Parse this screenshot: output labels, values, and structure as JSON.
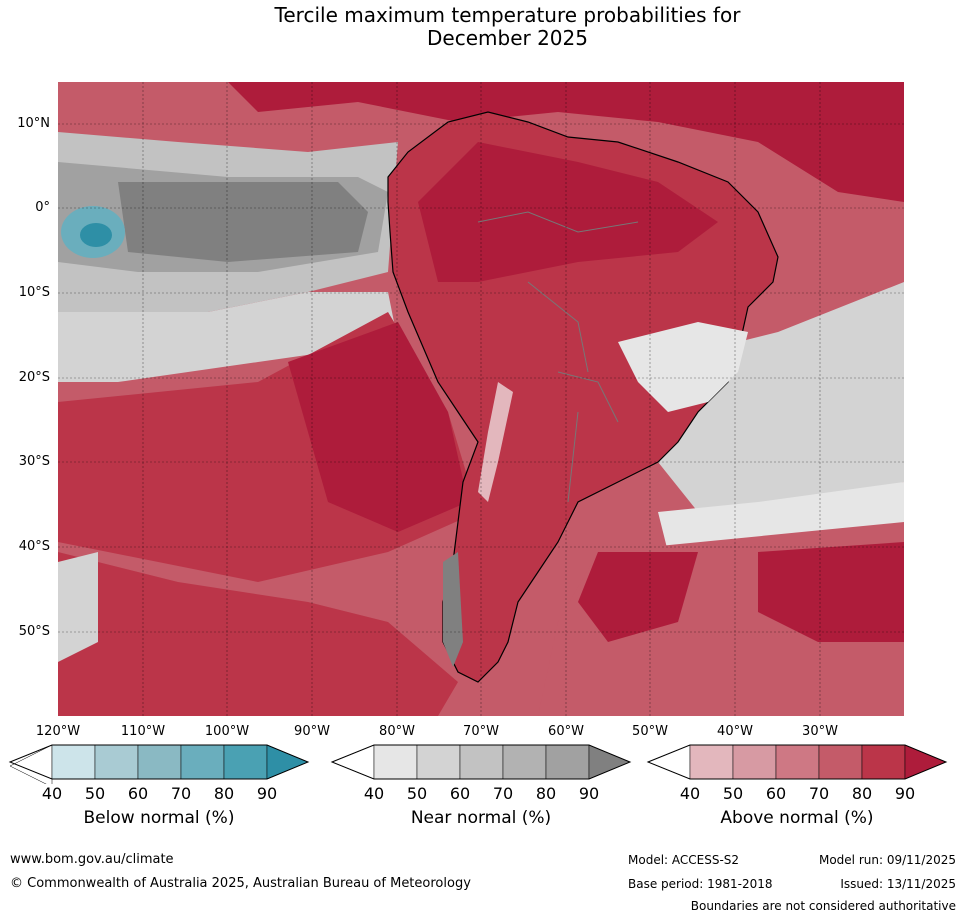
{
  "title_line1": "Tercile maximum temperature probabilities for",
  "title_line2": "December 2025",
  "map": {
    "lat_labels": [
      "10°N",
      "0°",
      "10°S",
      "20°S",
      "30°S",
      "40°S",
      "50°S"
    ],
    "lon_labels": [
      "120°W",
      "110°W",
      "100°W",
      "90°W",
      "80°W",
      "70°W",
      "60°W",
      "50°W",
      "40°W",
      "30°W"
    ]
  },
  "legends": [
    {
      "title": "Below normal (%)",
      "ticks": [
        "40",
        "50",
        "60",
        "70",
        "80",
        "90"
      ],
      "colors": [
        "#ffffff",
        "#cde4ea",
        "#a9cbd3",
        "#8ab9c3",
        "#6aaebd",
        "#4aa1b3",
        "#2e8fa6"
      ]
    },
    {
      "title": "Near normal (%)",
      "ticks": [
        "40",
        "50",
        "60",
        "70",
        "80",
        "90"
      ],
      "colors": [
        "#ffffff",
        "#e6e6e6",
        "#d3d3d3",
        "#c2c2c2",
        "#b2b2b2",
        "#a1a1a1",
        "#808080"
      ]
    },
    {
      "title": "Above normal (%)",
      "ticks": [
        "40",
        "50",
        "60",
        "70",
        "80",
        "90"
      ],
      "colors": [
        "#ffffff",
        "#e3b7bd",
        "#d79aa3",
        "#ce7884",
        "#c45b69",
        "#bb3549",
        "#ae1c3b"
      ]
    }
  ],
  "footer": {
    "url": "www.bom.gov.au/climate",
    "copyright": "© Commonwealth of Australia 2025, Australian Bureau of Meteorology",
    "model": "Model: ACCESS-S2",
    "base_period": "Base period: 1981-2018",
    "model_run": "Model run: 09/11/2025",
    "issued": "Issued: 13/11/2025",
    "disclaimer": "Boundaries are not considered authoritative"
  }
}
